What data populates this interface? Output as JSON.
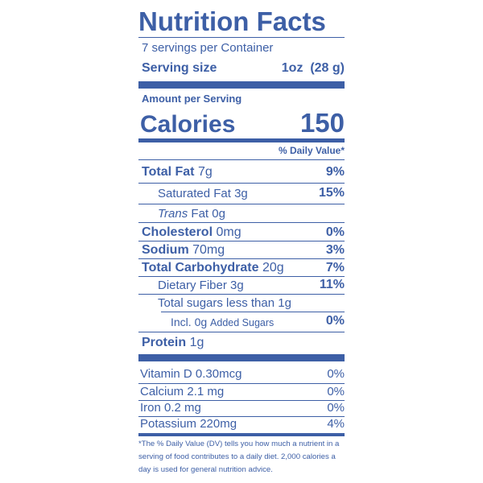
{
  "label": {
    "title": "Nutrition Facts",
    "servings": "7 servings per Container",
    "serving_size_label": "Serving size",
    "serving_size_value": "1oz  (28 g)",
    "amount_per_serving": "Amount per Serving",
    "calories_label": "Calories",
    "calories_value": "150",
    "dv_header": "% Daily Value*",
    "total_fat": {
      "name": "Total Fat",
      "amount": "7g",
      "dv": "9%"
    },
    "saturated_fat": {
      "name": "Saturated Fat",
      "amount": "3g",
      "dv": "15%"
    },
    "trans_fat": {
      "prefix": "Trans",
      "rest": " Fat 0g"
    },
    "cholesterol": {
      "name": "Cholesterol",
      "amount": "0mg",
      "dv": "0%"
    },
    "sodium": {
      "name": "Sodium",
      "amount": "70mg",
      "dv": "3%"
    },
    "total_carbohydrate": {
      "name": "Total Carbohydrate",
      "amount": "20g",
      "dv": "7%"
    },
    "dietary_fiber": {
      "name": "Dietary Fiber",
      "amount": "3g",
      "dv": "11%"
    },
    "total_sugars": {
      "text": "Total sugars less than 1g"
    },
    "added_sugars": {
      "prefix": "Incl.",
      "amount": "0g",
      "suffix": "Added Sugars",
      "dv": "0%"
    },
    "protein": {
      "name": "Protein",
      "amount": "1g"
    },
    "vitamin_d": {
      "name": "Vitamin D",
      "amount": "0.30mcg",
      "dv": "0%"
    },
    "calcium": {
      "name": "Calcium",
      "amount": "2.1 mg",
      "dv": "0%"
    },
    "iron": {
      "name": "Iron",
      "amount": "0.2 mg",
      "dv": "0%"
    },
    "potassium": {
      "name": "Potassium",
      "amount": "220mg",
      "dv": "4%"
    },
    "footnote": "*The % Daily Value (DV) tells you how much a nutrient in a serving of food contributes to a daily diet. 2,000 calories a day is used for general nutrition advice."
  },
  "colors": {
    "ink": "#3d5fa6",
    "background": "#ffffff"
  }
}
